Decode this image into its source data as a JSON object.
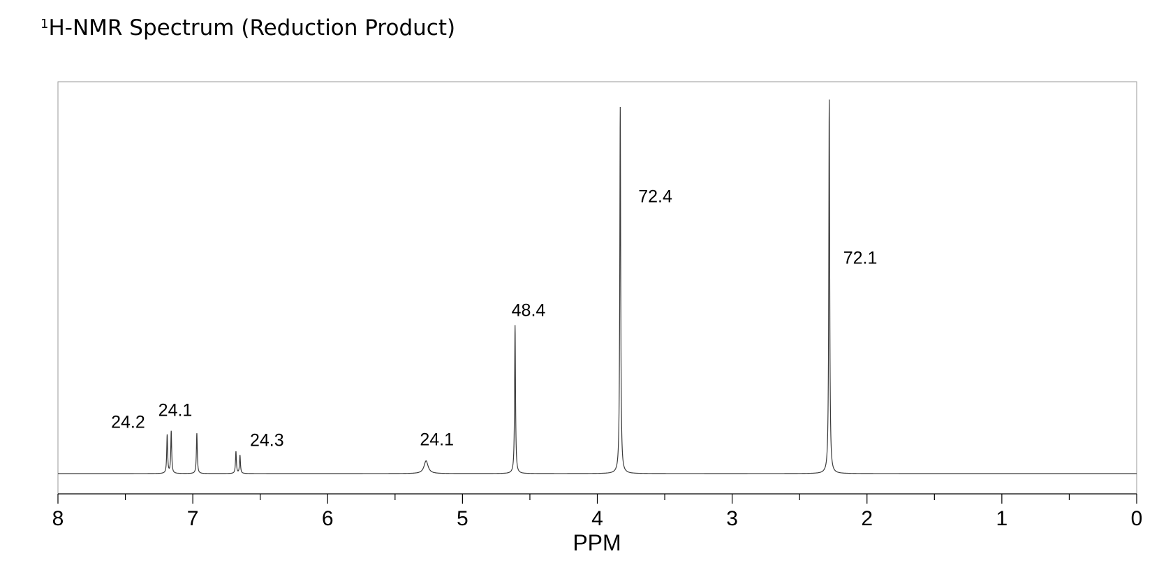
{
  "title": {
    "superscript": "1",
    "text": "H-NMR Spectrum (Reduction Product)"
  },
  "chart_data": {
    "type": "line",
    "xlabel": "PPM",
    "xlim": [
      8,
      0
    ],
    "x_reversed": true,
    "xticks": [
      "8",
      "7",
      "6",
      "5",
      "4",
      "3",
      "2",
      "1",
      "0"
    ],
    "ylim": [
      0,
      100
    ],
    "grid": false,
    "baseline": 0,
    "series": [
      {
        "peaks": [
          {
            "ppm": 7.19,
            "height": 10.5,
            "width": 0.004
          },
          {
            "ppm": 7.16,
            "height": 11.5,
            "width": 0.004
          },
          {
            "ppm": 6.97,
            "height": 11.0,
            "width": 0.004
          },
          {
            "ppm": 6.68,
            "height": 6.0,
            "width": 0.004
          },
          {
            "ppm": 6.65,
            "height": 5.0,
            "width": 0.004
          },
          {
            "ppm": 5.27,
            "height": 3.5,
            "width": 0.018
          },
          {
            "ppm": 4.61,
            "height": 40.5,
            "width": 0.004
          },
          {
            "ppm": 3.83,
            "height": 100.0,
            "width": 0.004
          },
          {
            "ppm": 2.28,
            "height": 102.0,
            "width": 0.004
          }
        ]
      }
    ],
    "annotations": [
      {
        "text": "24.2",
        "ppm": 7.48,
        "y": 12.5
      },
      {
        "text": "24.1",
        "ppm": 7.13,
        "y": 15.7
      },
      {
        "text": "24.3",
        "ppm": 6.45,
        "y": 7.5
      },
      {
        "text": "24.1",
        "ppm": 5.19,
        "y": 7.7
      },
      {
        "text": "48.4",
        "ppm": 4.51,
        "y": 43.0
      },
      {
        "text": "72.4",
        "ppm": 3.57,
        "y": 74.0
      },
      {
        "text": "72.1",
        "ppm": 2.05,
        "y": 57.2
      }
    ]
  }
}
